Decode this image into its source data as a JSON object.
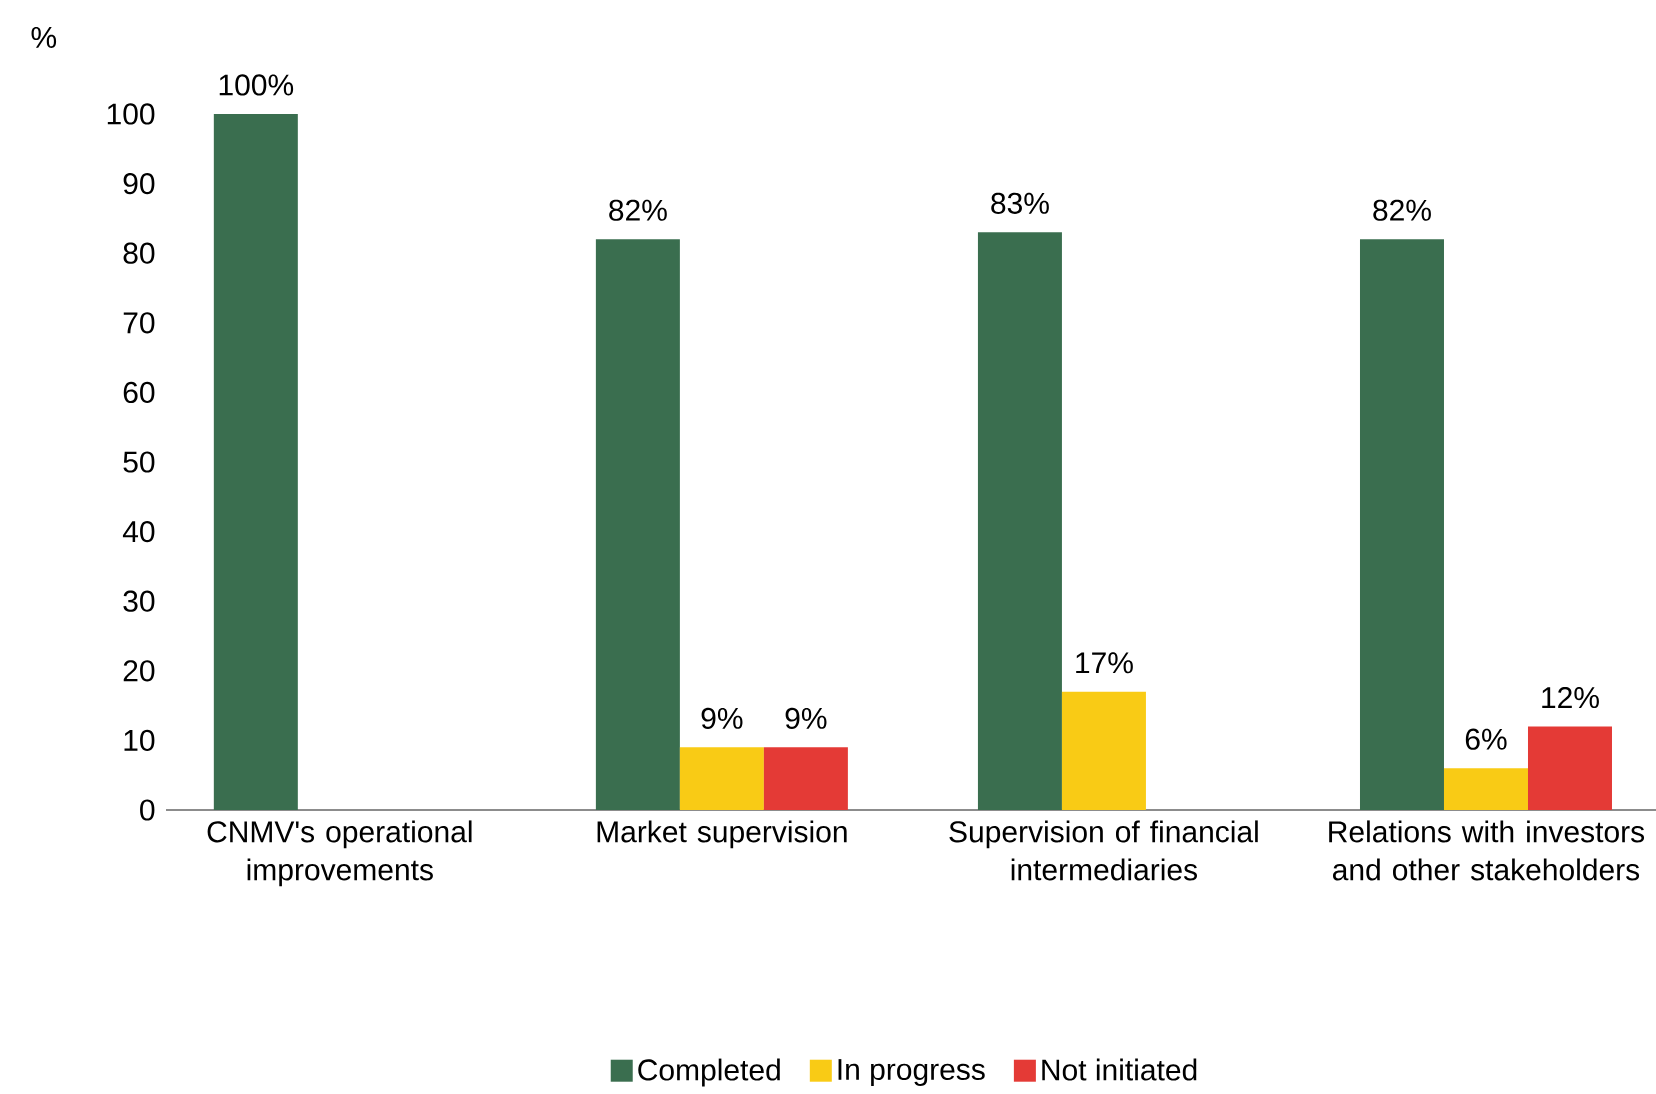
{
  "chart_data": {
    "type": "bar",
    "ylabel": "%",
    "categories": [
      "CNMV's operational improvements",
      "Market supervision",
      "Supervision of financial intermediaries",
      "Relations with investors and other stakeholders"
    ],
    "series": [
      {
        "name": "Completed",
        "color": "#3a6e4f",
        "values": [
          100,
          82,
          83,
          82
        ],
        "value_labels": [
          "100%",
          "82%",
          "83%",
          "82%"
        ]
      },
      {
        "name": "In progress",
        "color": "#f9cb15",
        "values": [
          null,
          9,
          17,
          6
        ],
        "value_labels": [
          null,
          "9%",
          "17%",
          "6%"
        ]
      },
      {
        "name": "Not initiated",
        "color": "#e43a36",
        "values": [
          null,
          9,
          null,
          12
        ],
        "value_labels": [
          null,
          "9%",
          null,
          "12%"
        ]
      }
    ],
    "ylim": [
      0,
      100
    ],
    "yticks": [
      0,
      10,
      20,
      30,
      40,
      50,
      60,
      70,
      80,
      90,
      100
    ],
    "grid": false,
    "legend": "bottom"
  }
}
